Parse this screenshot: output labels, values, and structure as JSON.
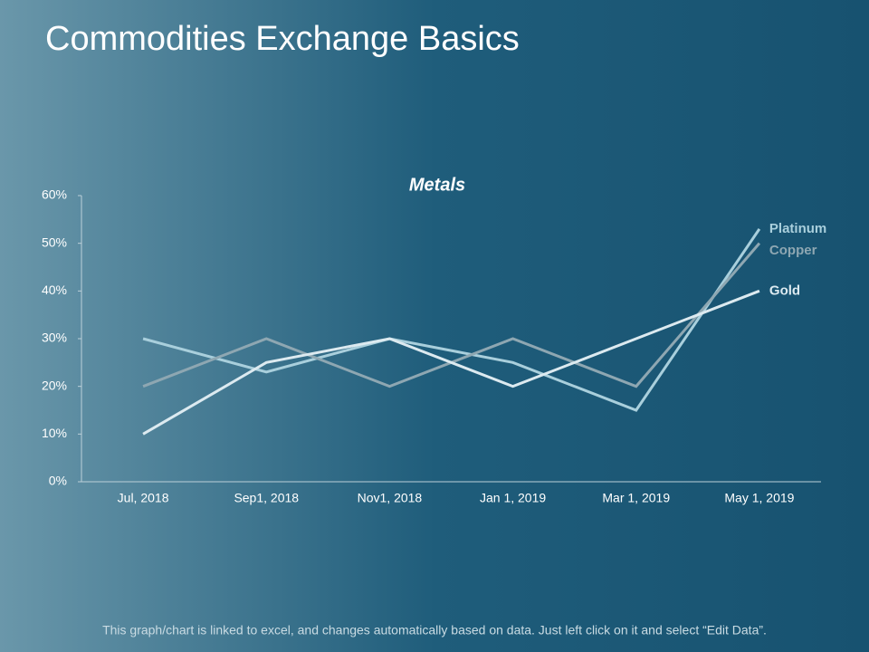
{
  "slide_title": "Commodities Exchange Basics",
  "footer": "This graph/chart is linked to excel, and changes automatically based on data. Just left click on it and select “Edit Data”.",
  "chart_data": {
    "type": "line",
    "title": "Metals",
    "categories": [
      "Jul, 2018",
      "Sep1, 2018",
      "Nov1, 2018",
      "Jan 1, 2019",
      "Mar 1, 2019",
      "May 1, 2019"
    ],
    "series": [
      {
        "name": "Platinum",
        "color": "#a9cfdc",
        "values": [
          30,
          23,
          30,
          25,
          15,
          53
        ]
      },
      {
        "name": "Copper",
        "color": "#8ea7b2",
        "values": [
          20,
          30,
          20,
          30,
          20,
          50
        ]
      },
      {
        "name": "Gold",
        "color": "#dceaf0",
        "values": [
          10,
          25,
          30,
          20,
          30,
          40
        ]
      }
    ],
    "ylim": [
      0,
      60
    ],
    "yticks": [
      {
        "value": 0,
        "label": "0%"
      },
      {
        "value": 10,
        "label": "10%"
      },
      {
        "value": 20,
        "label": "20%"
      },
      {
        "value": 30,
        "label": "30%"
      },
      {
        "value": 40,
        "label": "40%"
      },
      {
        "value": 50,
        "label": "50%"
      },
      {
        "value": 60,
        "label": "60%"
      }
    ],
    "grid": false,
    "legend": "right"
  }
}
